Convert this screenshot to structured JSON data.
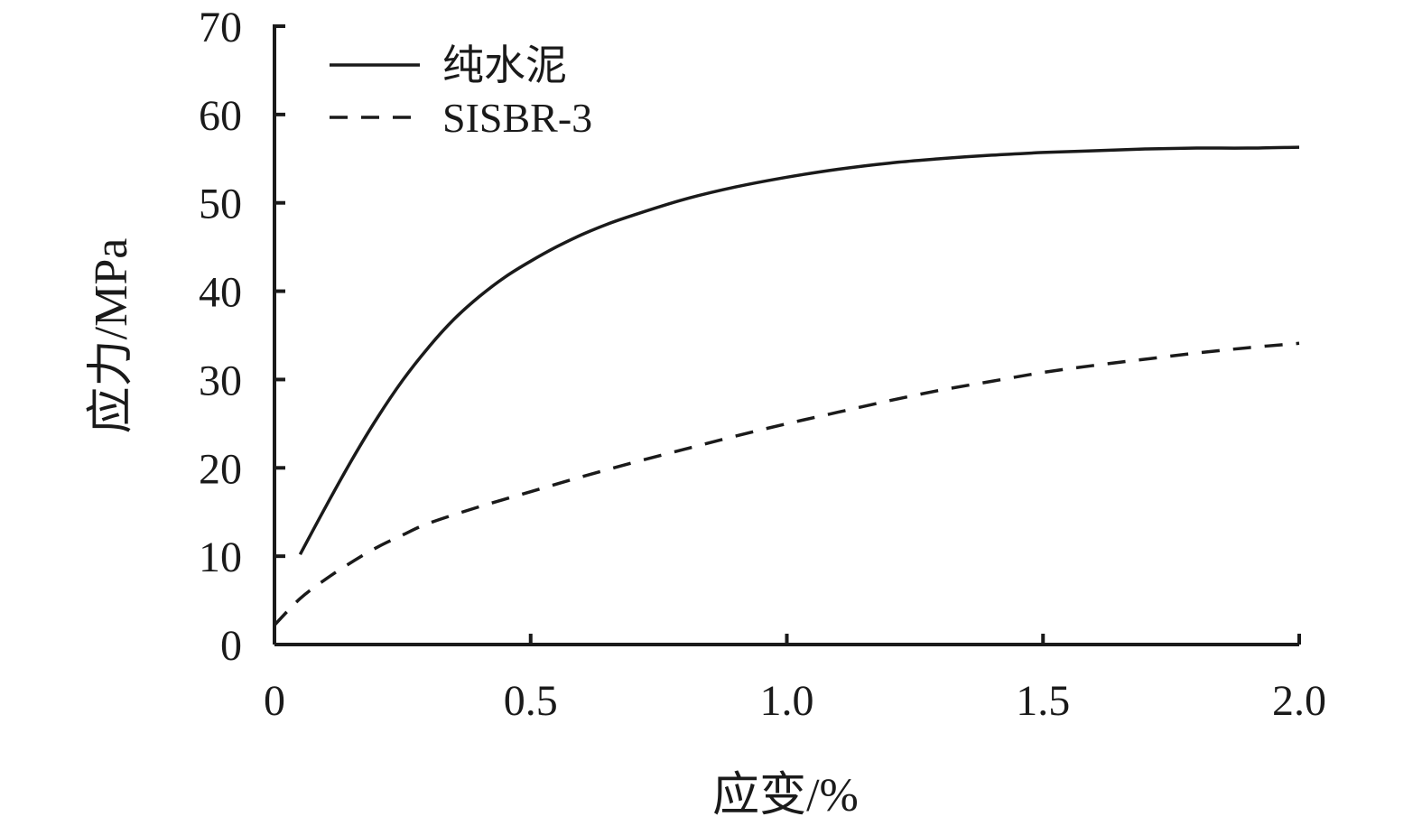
{
  "chart_data": {
    "type": "line",
    "xlabel": "应变/%",
    "ylabel": "应力/MPa",
    "xlim": [
      0,
      2.0
    ],
    "ylim": [
      0,
      70
    ],
    "x_ticks": [
      0,
      0.5,
      1.0,
      1.5,
      2.0
    ],
    "x_tick_labels": [
      "0",
      "0.5",
      "1.0",
      "1.5",
      "2.0"
    ],
    "y_ticks": [
      0,
      10,
      20,
      30,
      40,
      50,
      60,
      70
    ],
    "y_tick_labels": [
      "0",
      "10",
      "20",
      "30",
      "40",
      "50",
      "60",
      "70"
    ],
    "grid": false,
    "legend_position": "top-left",
    "series": [
      {
        "name": "纯水泥",
        "style": "solid",
        "color": "#1a1a1a",
        "x": [
          0.05,
          0.1,
          0.15,
          0.2,
          0.25,
          0.3,
          0.35,
          0.4,
          0.45,
          0.5,
          0.55,
          0.6,
          0.65,
          0.7,
          0.8,
          0.9,
          1.0,
          1.1,
          1.2,
          1.3,
          1.4,
          1.5,
          1.6,
          1.7,
          1.8,
          1.9,
          2.0
        ],
        "y": [
          10.2,
          15.6,
          20.8,
          25.6,
          29.9,
          33.6,
          36.8,
          39.4,
          41.6,
          43.4,
          45.0,
          46.4,
          47.6,
          48.6,
          50.4,
          51.8,
          52.9,
          53.8,
          54.5,
          55.0,
          55.4,
          55.7,
          55.9,
          56.1,
          56.2,
          56.2,
          56.3
        ]
      },
      {
        "name": "SISBR-3",
        "style": "dashed",
        "color": "#1a1a1a",
        "x": [
          0,
          0.05,
          0.1,
          0.15,
          0.2,
          0.25,
          0.3,
          0.4,
          0.5,
          0.6,
          0.7,
          0.8,
          0.9,
          1.0,
          1.1,
          1.2,
          1.3,
          1.4,
          1.5,
          1.6,
          1.7,
          1.8,
          1.9,
          2.0
        ],
        "y": [
          2.2,
          5.2,
          7.4,
          9.3,
          11.0,
          12.4,
          13.7,
          15.6,
          17.3,
          19.0,
          20.6,
          22.1,
          23.6,
          25.0,
          26.3,
          27.6,
          28.8,
          29.8,
          30.8,
          31.6,
          32.3,
          33.0,
          33.6,
          34.1
        ]
      }
    ]
  }
}
